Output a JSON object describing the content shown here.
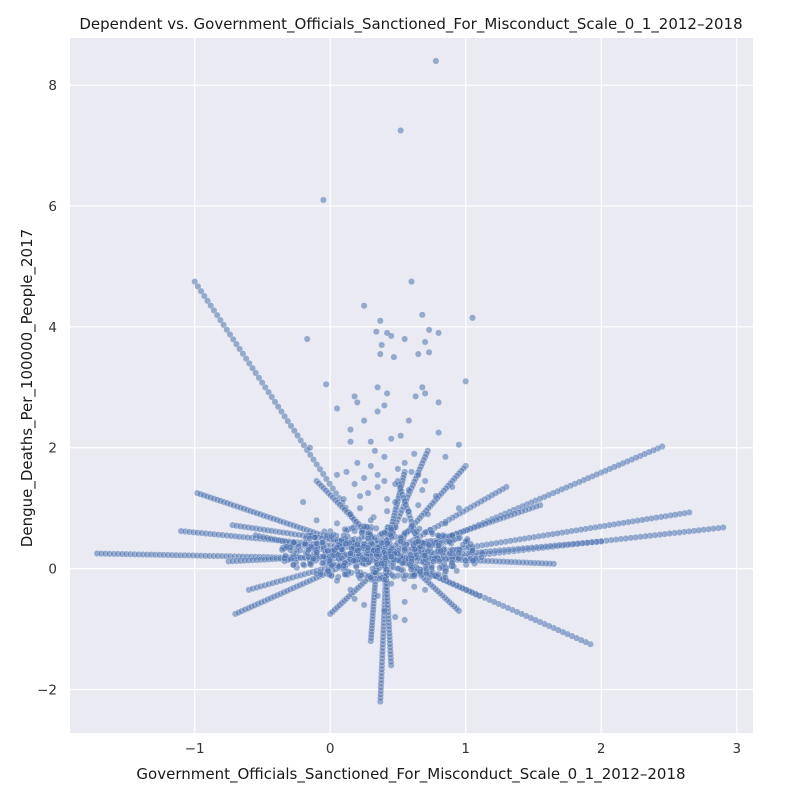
{
  "chart_data": {
    "type": "scatter",
    "title": "Dependent vs. Government_Officials_Sanctioned_For_Misconduct_Scale_0_1_2012–2018",
    "xlabel": "Government_Officials_Sanctioned_For_Misconduct_Scale_0_1_2012–2018",
    "ylabel": "Dengue_Deaths_Per_100000_People_2017",
    "xlim": [
      -1.92,
      3.12
    ],
    "ylim": [
      -2.72,
      8.78
    ],
    "xticks": [
      -1,
      0,
      1,
      2,
      3
    ],
    "yticks": [
      -2,
      0,
      2,
      4,
      6,
      8
    ],
    "xtick_labels": [
      "−1",
      "0",
      "1",
      "2",
      "3"
    ],
    "ytick_labels": [
      "−2",
      "0",
      "2",
      "4",
      "6",
      "8"
    ],
    "grid": true,
    "background": "#eaeaf2",
    "point_color": "#4c72b0",
    "rays": [
      {
        "from": [
          -1.0,
          4.75
        ],
        "to": [
          0.28,
          0.45
        ],
        "n": 55
      },
      {
        "from": [
          -0.98,
          1.25
        ],
        "to": [
          0.34,
          0.25
        ],
        "n": 55
      },
      {
        "from": [
          -1.1,
          0.62
        ],
        "to": [
          0.4,
          0.3
        ],
        "n": 50
      },
      {
        "from": [
          -1.72,
          0.25
        ],
        "to": [
          0.4,
          0.15
        ],
        "n": 70
      },
      {
        "from": [
          -0.72,
          0.72
        ],
        "to": [
          0.4,
          0.35
        ],
        "n": 40
      },
      {
        "from": [
          -0.75,
          0.12
        ],
        "to": [
          0.4,
          0.25
        ],
        "n": 40
      },
      {
        "from": [
          -0.7,
          -0.75
        ],
        "to": [
          0.35,
          0.3
        ],
        "n": 45
      },
      {
        "from": [
          -0.6,
          -0.35
        ],
        "to": [
          0.4,
          0.28
        ],
        "n": 35
      },
      {
        "from": [
          -0.55,
          0.55
        ],
        "to": [
          0.4,
          0.1
        ],
        "n": 35
      },
      {
        "from": [
          2.45,
          2.02
        ],
        "to": [
          0.55,
          0.2
        ],
        "n": 60
      },
      {
        "from": [
          2.65,
          0.93
        ],
        "to": [
          0.6,
          0.2
        ],
        "n": 60
      },
      {
        "from": [
          2.9,
          0.68
        ],
        "to": [
          0.6,
          0.1
        ],
        "n": 65
      },
      {
        "from": [
          2.0,
          0.45
        ],
        "to": [
          0.5,
          0.15
        ],
        "n": 45
      },
      {
        "from": [
          1.92,
          -1.25
        ],
        "to": [
          0.6,
          0.05
        ],
        "n": 40
      },
      {
        "from": [
          1.65,
          0.08
        ],
        "to": [
          0.4,
          0.2
        ],
        "n": 45
      },
      {
        "from": [
          1.55,
          1.05
        ],
        "to": [
          0.5,
          0.25
        ],
        "n": 40
      },
      {
        "from": [
          1.3,
          1.35
        ],
        "to": [
          0.4,
          0.2
        ],
        "n": 35
      },
      {
        "from": [
          1.1,
          -0.45
        ],
        "to": [
          0.4,
          0.25
        ],
        "n": 30
      },
      {
        "from": [
          0.37,
          -2.2
        ],
        "to": [
          0.42,
          0.4
        ],
        "n": 45
      },
      {
        "from": [
          0.45,
          -1.6
        ],
        "to": [
          0.4,
          0.4
        ],
        "n": 35
      },
      {
        "from": [
          0.3,
          -1.2
        ],
        "to": [
          0.35,
          0.3
        ],
        "n": 30
      },
      {
        "from": [
          0.72,
          1.95
        ],
        "to": [
          0.38,
          0.2
        ],
        "n": 35
      },
      {
        "from": [
          1.0,
          1.7
        ],
        "to": [
          0.45,
          0.3
        ],
        "n": 35
      },
      {
        "from": [
          0.55,
          1.6
        ],
        "to": [
          0.4,
          0.2
        ],
        "n": 30
      },
      {
        "from": [
          -0.1,
          1.45
        ],
        "to": [
          0.4,
          0.3
        ],
        "n": 30
      },
      {
        "from": [
          0.95,
          -0.7
        ],
        "to": [
          0.45,
          0.35
        ],
        "n": 30
      },
      {
        "from": [
          0.5,
          1.45
        ],
        "to": [
          0.7,
          0.1
        ],
        "n": 25
      },
      {
        "from": [
          0.0,
          -0.75
        ],
        "to": [
          0.5,
          0.3
        ],
        "n": 30
      }
    ],
    "points": [
      [
        0.78,
        8.4
      ],
      [
        0.52,
        7.25
      ],
      [
        -0.05,
        6.1
      ],
      [
        0.6,
        4.75
      ],
      [
        0.25,
        4.35
      ],
      [
        1.05,
        4.15
      ],
      [
        0.68,
        4.2
      ],
      [
        0.37,
        4.1
      ],
      [
        -0.17,
        3.8
      ],
      [
        0.45,
        3.85
      ],
      [
        0.42,
        3.9
      ],
      [
        0.8,
        3.9
      ],
      [
        0.73,
        3.95
      ],
      [
        0.34,
        3.92
      ],
      [
        0.55,
        3.8
      ],
      [
        0.38,
        3.7
      ],
      [
        0.7,
        3.75
      ],
      [
        0.73,
        3.58
      ],
      [
        0.65,
        3.55
      ],
      [
        0.47,
        3.5
      ],
      [
        0.37,
        3.55
      ],
      [
        1.0,
        3.1
      ],
      [
        -0.03,
        3.05
      ],
      [
        0.35,
        3.0
      ],
      [
        0.68,
        3.0
      ],
      [
        0.42,
        2.9
      ],
      [
        0.7,
        2.9
      ],
      [
        0.63,
        2.85
      ],
      [
        0.18,
        2.85
      ],
      [
        0.8,
        2.75
      ],
      [
        0.2,
        2.75
      ],
      [
        0.4,
        2.7
      ],
      [
        0.05,
        2.65
      ],
      [
        0.35,
        2.6
      ],
      [
        0.58,
        2.45
      ],
      [
        0.25,
        2.45
      ],
      [
        0.15,
        2.3
      ],
      [
        0.8,
        2.25
      ],
      [
        0.45,
        2.15
      ],
      [
        0.52,
        2.2
      ],
      [
        0.3,
        2.1
      ],
      [
        0.95,
        2.05
      ],
      [
        0.15,
        2.1
      ],
      [
        0.33,
        1.95
      ],
      [
        0.62,
        1.9
      ],
      [
        -0.15,
        2.0
      ],
      [
        0.4,
        1.85
      ],
      [
        0.85,
        1.85
      ],
      [
        0.2,
        1.75
      ],
      [
        0.3,
        1.7
      ],
      [
        0.5,
        1.65
      ],
      [
        0.12,
        1.6
      ],
      [
        0.05,
        1.55
      ],
      [
        0.25,
        1.5
      ],
      [
        0.4,
        1.45
      ],
      [
        0.65,
        1.55
      ],
      [
        0.18,
        1.4
      ],
      [
        0.35,
        1.35
      ],
      [
        0.9,
        1.35
      ],
      [
        0.58,
        1.3
      ],
      [
        0.28,
        1.25
      ],
      [
        0.78,
        1.2
      ],
      [
        0.1,
        1.15
      ],
      [
        0.48,
        1.1
      ],
      [
        -0.2,
        1.1
      ],
      [
        0.65,
        1.05
      ],
      [
        0.22,
        1.0
      ],
      [
        0.95,
        1.0
      ],
      [
        0.42,
        0.95
      ],
      [
        0.15,
        0.9
      ],
      [
        0.72,
        0.9
      ],
      [
        0.32,
        0.85
      ],
      [
        0.55,
        0.8
      ],
      [
        -0.1,
        0.8
      ],
      [
        0.05,
        0.75
      ],
      [
        0.85,
        0.75
      ],
      [
        0.25,
        0.7
      ],
      [
        0.45,
        0.65
      ],
      [
        0.6,
        0.7
      ],
      [
        0.18,
        0.62
      ],
      [
        0.75,
        0.6
      ],
      [
        0.38,
        0.58
      ],
      [
        0.1,
        0.55
      ],
      [
        0.52,
        0.52
      ],
      [
        0.9,
        0.55
      ],
      [
        0.28,
        0.5
      ],
      [
        -0.15,
        0.5
      ],
      [
        0.65,
        0.45
      ],
      [
        0.42,
        0.42
      ],
      [
        0.2,
        0.4
      ],
      [
        0.8,
        0.38
      ],
      [
        0.05,
        0.35
      ],
      [
        0.55,
        0.33
      ],
      [
        0.35,
        0.3
      ],
      [
        1.05,
        0.3
      ],
      [
        0.15,
        0.25
      ],
      [
        0.7,
        0.22
      ],
      [
        0.45,
        0.2
      ],
      [
        -0.05,
        0.2
      ],
      [
        0.25,
        0.15
      ],
      [
        0.6,
        0.12
      ],
      [
        0.9,
        0.1
      ],
      [
        0.38,
        0.08
      ],
      [
        0.1,
        0.05
      ],
      [
        0.75,
        0.02
      ],
      [
        0.5,
        0.0
      ],
      [
        0.2,
        -0.05
      ],
      [
        0.62,
        -0.1
      ],
      [
        0.3,
        -0.15
      ],
      [
        0.85,
        -0.15
      ],
      [
        0.05,
        -0.2
      ],
      [
        0.45,
        -0.25
      ],
      [
        0.15,
        -0.35
      ],
      [
        0.7,
        -0.35
      ],
      [
        0.35,
        -0.45
      ],
      [
        0.55,
        -0.55
      ],
      [
        0.25,
        -0.6
      ],
      [
        0.48,
        -0.8
      ],
      [
        0.55,
        -0.85
      ],
      [
        0.4,
        -0.7
      ],
      [
        0.62,
        -0.3
      ],
      [
        0.18,
        -0.5
      ],
      [
        0.28,
        0.35
      ],
      [
        0.52,
        0.45
      ],
      [
        0.4,
        0.6
      ],
      [
        0.3,
        0.8
      ],
      [
        0.58,
        0.95
      ],
      [
        0.22,
        1.2
      ],
      [
        0.68,
        1.3
      ],
      [
        0.42,
        1.15
      ],
      [
        0.48,
        1.4
      ],
      [
        0.6,
        1.6
      ],
      [
        0.35,
        1.55
      ],
      [
        0.7,
        1.45
      ],
      [
        0.55,
        1.75
      ]
    ]
  }
}
